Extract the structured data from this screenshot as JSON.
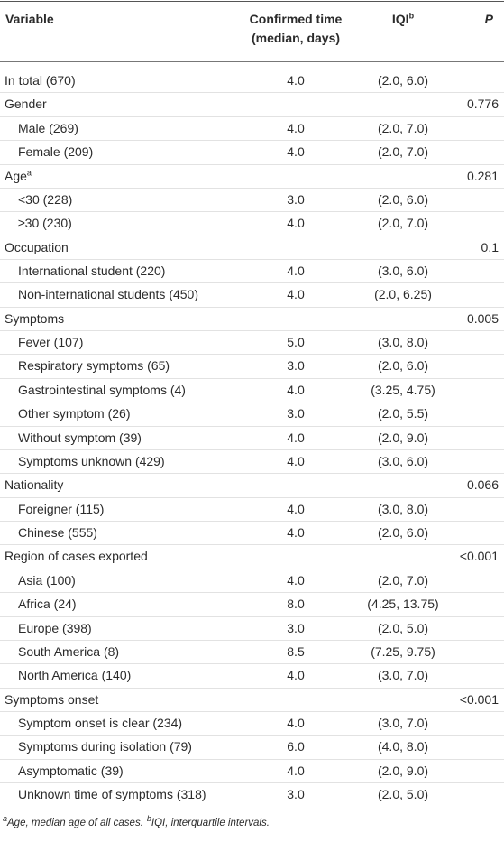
{
  "table": {
    "header": {
      "variable": "Variable",
      "median_line1": "Confirmed time",
      "median_line2": "(median, days)",
      "iqi": "IQI",
      "iqi_sup": "b",
      "p": "P"
    },
    "total": {
      "label": "In total (670)",
      "median": "4.0",
      "iqi": "(2.0, 6.0)"
    },
    "groups": [
      {
        "label": "Gender",
        "p": "0.776",
        "items": [
          {
            "label": "Male (269)",
            "median": "4.0",
            "iqi": "(2.0, 7.0)"
          },
          {
            "label": "Female (209)",
            "median": "4.0",
            "iqi": "(2.0, 7.0)"
          }
        ]
      },
      {
        "label": "Age",
        "label_sup": "a",
        "p": "0.281",
        "items": [
          {
            "label": "<30 (228)",
            "median": "3.0",
            "iqi": "(2.0, 6.0)"
          },
          {
            "label": "≥30 (230)",
            "median": "4.0",
            "iqi": "(2.0, 7.0)"
          }
        ]
      },
      {
        "label": "Occupation",
        "p": "0.1",
        "items": [
          {
            "label": "International student (220)",
            "median": "4.0",
            "iqi": "(3.0, 6.0)"
          },
          {
            "label": "Non-international students (450)",
            "median": "4.0",
            "iqi": "(2.0, 6.25)"
          }
        ]
      },
      {
        "label": "Symptoms",
        "p": "0.005",
        "items": [
          {
            "label": "Fever (107)",
            "median": "5.0",
            "iqi": "(3.0, 8.0)"
          },
          {
            "label": "Respiratory symptoms (65)",
            "median": "3.0",
            "iqi": "(2.0, 6.0)"
          },
          {
            "label": "Gastrointestinal symptoms (4)",
            "median": "4.0",
            "iqi": "(3.25, 4.75)"
          },
          {
            "label": "Other symptom (26)",
            "median": "3.0",
            "iqi": "(2.0, 5.5)"
          },
          {
            "label": "Without symptom (39)",
            "median": "4.0",
            "iqi": "(2.0, 9.0)"
          },
          {
            "label": "Symptoms unknown (429)",
            "median": "4.0",
            "iqi": "(3.0, 6.0)"
          }
        ]
      },
      {
        "label": "Nationality",
        "p": "0.066",
        "items": [
          {
            "label": "Foreigner (115)",
            "median": "4.0",
            "iqi": "(3.0, 8.0)"
          },
          {
            "label": "Chinese (555)",
            "median": "4.0",
            "iqi": "(2.0, 6.0)"
          }
        ]
      },
      {
        "label": "Region of cases exported",
        "p": "<0.001",
        "items": [
          {
            "label": "Asia (100)",
            "median": "4.0",
            "iqi": "(2.0, 7.0)"
          },
          {
            "label": "Africa (24)",
            "median": "8.0",
            "iqi": "(4.25, 13.75)"
          },
          {
            "label": "Europe (398)",
            "median": "3.0",
            "iqi": "(2.0, 5.0)"
          },
          {
            "label": "South America (8)",
            "median": "8.5",
            "iqi": "(7.25, 9.75)"
          },
          {
            "label": "North America (140)",
            "median": "4.0",
            "iqi": "(3.0, 7.0)"
          }
        ]
      },
      {
        "label": "Symptoms onset",
        "p": "<0.001",
        "items": [
          {
            "label": "Symptom onset is clear (234)",
            "median": "4.0",
            "iqi": "(3.0, 7.0)"
          },
          {
            "label": "Symptoms during isolation (79)",
            "median": "6.0",
            "iqi": "(4.0, 8.0)"
          },
          {
            "label": "Asymptomatic (39)",
            "median": "4.0",
            "iqi": "(2.0, 9.0)"
          },
          {
            "label": "Unknown time of symptoms (318)",
            "median": "3.0",
            "iqi": "(2.0, 5.0)"
          }
        ]
      }
    ],
    "footnotes": [
      {
        "mark": "a",
        "text": "Age, median age of all cases."
      },
      {
        "mark": "b",
        "text": "IQI, interquartile intervals."
      }
    ]
  }
}
